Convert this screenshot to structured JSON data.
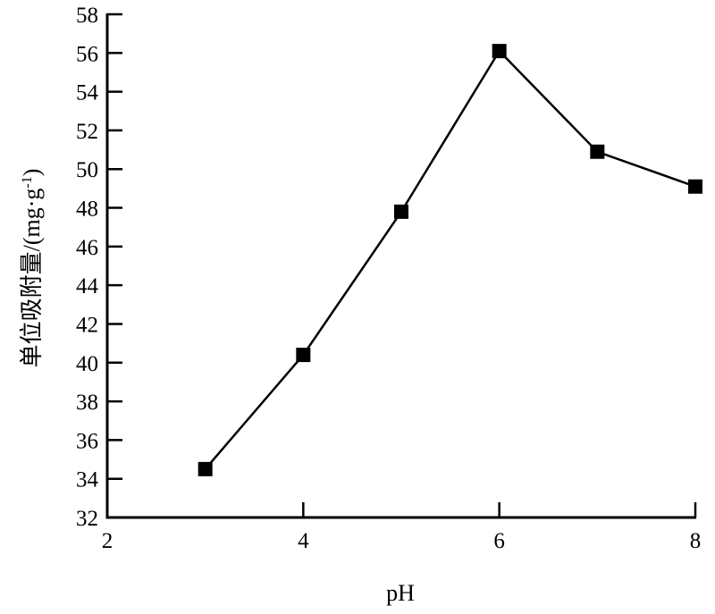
{
  "chart_data": {
    "type": "line",
    "title": "",
    "xlabel": "pH",
    "ylabel": "单位吸附量/(mg·g-1)",
    "ylabel_parts": {
      "main": "单位吸附量/(mg·g",
      "sup": "-1",
      "end": ")"
    },
    "xlim": [
      2,
      8
    ],
    "ylim": [
      32,
      58
    ],
    "xticks": [
      2,
      4,
      6,
      8
    ],
    "yticks": [
      32,
      34,
      36,
      38,
      40,
      42,
      44,
      46,
      48,
      50,
      52,
      54,
      56,
      58
    ],
    "grid": false,
    "marker": "square",
    "color": "#000000",
    "series": [
      {
        "x": [
          3,
          4,
          5,
          6,
          7,
          8
        ],
        "values": [
          34.5,
          40.4,
          47.8,
          56.1,
          50.9,
          49.1
        ]
      }
    ]
  }
}
